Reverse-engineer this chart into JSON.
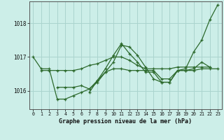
{
  "title": "Graphe pression niveau de la mer (hPa)",
  "bg_color": "#cceee8",
  "grid_color": "#aad4ce",
  "line_color": "#2d6a2d",
  "xlim": [
    -0.5,
    23.5
  ],
  "ylim": [
    1015.45,
    1018.65
  ],
  "yticks": [
    1016,
    1017,
    1018
  ],
  "xticks": [
    0,
    1,
    2,
    3,
    4,
    5,
    6,
    7,
    8,
    9,
    10,
    11,
    12,
    13,
    14,
    15,
    16,
    17,
    18,
    19,
    20,
    21,
    22,
    23
  ],
  "series": [
    {
      "x": [
        0,
        1,
        2,
        3,
        4,
        5,
        6,
        7,
        8,
        9,
        10,
        11,
        12,
        13,
        14,
        15,
        16,
        17,
        18,
        19,
        20,
        21,
        22,
        23
      ],
      "y": [
        1017.0,
        1016.65,
        1016.65,
        1015.75,
        1015.75,
        1015.85,
        1015.95,
        1016.05,
        1016.3,
        1016.55,
        1016.65,
        1016.65,
        1016.6,
        1016.6,
        1016.6,
        1016.6,
        1016.35,
        1016.35,
        1016.6,
        1016.6,
        1016.6,
        1016.65,
        1016.65,
        1016.65
      ]
    },
    {
      "x": [
        3,
        4,
        5,
        6,
        7,
        8,
        9,
        10,
        11,
        12,
        13,
        14,
        15,
        16,
        17,
        18,
        19,
        20,
        21,
        22
      ],
      "y": [
        1016.1,
        1016.1,
        1016.1,
        1016.15,
        1016.05,
        1016.25,
        1016.55,
        1016.85,
        1017.35,
        1017.3,
        1017.05,
        1016.7,
        1016.35,
        1016.25,
        1016.25,
        1016.6,
        1016.6,
        1016.65,
        1016.85,
        1016.7
      ]
    },
    {
      "x": [
        7,
        8,
        9,
        10,
        11,
        12,
        13,
        14,
        15,
        16,
        17,
        18,
        19,
        20,
        21,
        22,
        23
      ],
      "y": [
        1015.95,
        1016.3,
        1016.65,
        1017.05,
        1017.4,
        1017.1,
        1016.85,
        1016.55,
        1016.55,
        1016.25,
        1016.25,
        1016.6,
        1016.65,
        1017.15,
        1017.5,
        1018.1,
        1018.55
      ]
    },
    {
      "x": [
        1,
        2,
        3,
        4,
        5,
        6,
        7,
        8,
        9,
        10,
        11,
        12,
        13,
        14,
        15,
        16,
        17,
        18,
        19,
        20,
        21,
        22
      ],
      "y": [
        1016.6,
        1016.6,
        1016.6,
        1016.6,
        1016.6,
        1016.65,
        1016.75,
        1016.8,
        1016.9,
        1017.0,
        1017.0,
        1016.9,
        1016.75,
        1016.65,
        1016.65,
        1016.65,
        1016.65,
        1016.7,
        1016.7,
        1016.7,
        1016.7,
        1016.7
      ]
    }
  ]
}
